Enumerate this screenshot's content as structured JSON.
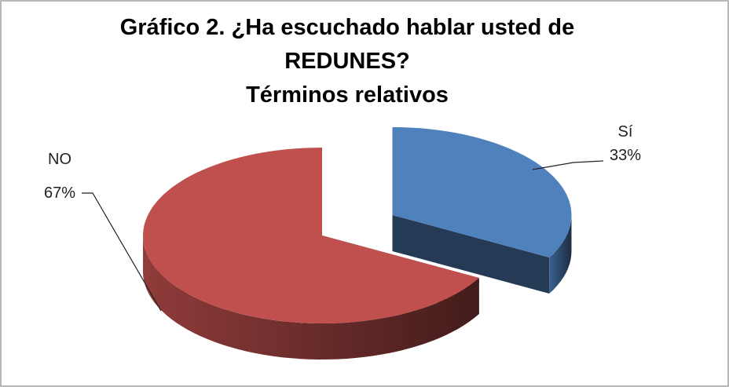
{
  "chart_data": {
    "type": "pie",
    "title": "Gráfico 2. ¿Ha escuchado hablar usted de REDUNES?",
    "subtitle": "Términos relativos",
    "categories": [
      "Sí",
      "NO"
    ],
    "values": [
      33,
      67
    ],
    "value_labels": [
      "33%",
      "67%"
    ],
    "colors": [
      "#4f81bd",
      "#c0504d"
    ],
    "exploded": 0
  }
}
